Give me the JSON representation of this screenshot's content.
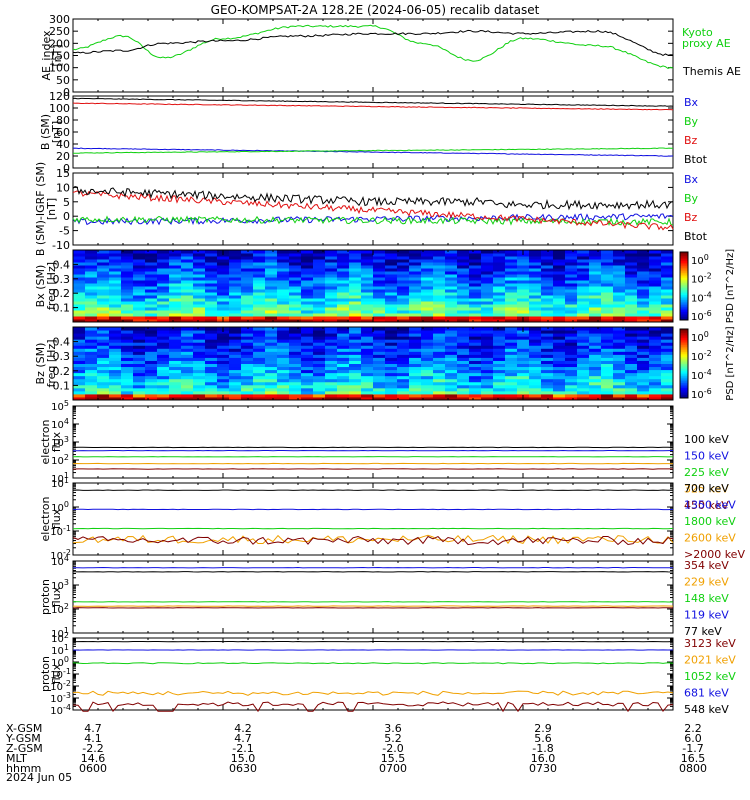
{
  "title": "GEO-KOMPSAT-2A 128.2E (2024-06-05) recalib dataset",
  "colors": {
    "black": "#000000",
    "blue": "#1010e0",
    "green": "#10d010",
    "red": "#e01010",
    "orange": "#f0a000",
    "darkred": "#800000"
  },
  "chart_data": [
    {
      "type": "line",
      "ylabel": "AE_index\n[nT]",
      "ylim": [
        0,
        300
      ],
      "yticks": [
        "0",
        "50",
        "100",
        "150",
        "200",
        "250",
        "300"
      ],
      "series": [
        {
          "name": "Kyoto\nproxy AE",
          "color": "#10d010",
          "x": [
            "0600",
            "0610",
            "0618",
            "0630",
            "0645",
            "0700",
            "0710",
            "0720",
            "0730",
            "0745",
            "0800"
          ],
          "values": [
            175,
            230,
            140,
            220,
            270,
            270,
            200,
            130,
            220,
            190,
            100
          ]
        },
        {
          "name": "Themis AE",
          "color": "#000000",
          "x": [
            "0600",
            "0610",
            "0618",
            "0630",
            "0645",
            "0700",
            "0710",
            "0720",
            "0730",
            "0745",
            "0800"
          ],
          "values": [
            160,
            170,
            200,
            210,
            230,
            240,
            240,
            250,
            240,
            250,
            150
          ]
        }
      ]
    },
    {
      "type": "line",
      "ylabel": "B (SM)\n[nT]",
      "ylim": [
        0,
        120
      ],
      "yticks": [
        "0",
        "20",
        "40",
        "60",
        "80",
        "100",
        "120"
      ],
      "series": [
        {
          "name": "Bx",
          "color": "#1010e0",
          "start": 33,
          "end": 20
        },
        {
          "name": "By",
          "color": "#10d010",
          "start": 25,
          "end": 33
        },
        {
          "name": "Bz",
          "color": "#e01010",
          "start": 108,
          "end": 97
        },
        {
          "name": "Btot",
          "color": "#000000",
          "start": 116,
          "end": 103
        }
      ]
    },
    {
      "type": "line",
      "ylabel": "B (SM)-IGRF (SM)\n[nT]",
      "ylim": [
        -10,
        15
      ],
      "yticks": [
        "-10",
        "-5",
        "0",
        "5",
        "10",
        "15"
      ],
      "series": [
        {
          "name": "Bx",
          "color": "#1010e0",
          "start": -2,
          "end": 0
        },
        {
          "name": "By",
          "color": "#10d010",
          "start": -1,
          "end": -2
        },
        {
          "name": "Bz",
          "color": "#e01010",
          "start": 8,
          "end": -4
        },
        {
          "name": "Btot",
          "color": "#000000",
          "start": 9,
          "end": 4
        }
      ]
    },
    {
      "type": "heatmap",
      "ylabel": "Bx (SM)\nfreq [Hz]",
      "yticks": [
        "0.1",
        "0.2",
        "0.3",
        "0.4"
      ],
      "colorbar_label": "PSD [nT^2/Hz]",
      "colorbar_ticks": [
        "10^0",
        "10^-2",
        "10^-4",
        "10^-6"
      ]
    },
    {
      "type": "heatmap",
      "ylabel": "Bz (SM)\nfreq [Hz]",
      "yticks": [
        "0.1",
        "0.2",
        "0.3",
        "0.4"
      ],
      "colorbar_label": "PSD [nT^2/Hz]",
      "colorbar_ticks": [
        "10^0",
        "10^-2",
        "10^-4",
        "10^-6"
      ]
    },
    {
      "type": "line",
      "log": true,
      "ylabel": "electron\nflux",
      "ylim_exp": [
        1,
        5
      ],
      "series": [
        {
          "name": "100 keV",
          "color": "#000000",
          "logv": 2.7
        },
        {
          "name": "150 keV",
          "color": "#1010e0",
          "logv": 2.52
        },
        {
          "name": "225 keV",
          "color": "#10d010",
          "logv": 2.18
        },
        {
          "name": "325 keV",
          "color": "#f0a000",
          "logv": 1.8
        },
        {
          "name": "450 keV",
          "color": "#800000",
          "logv": 1.5
        }
      ]
    },
    {
      "type": "line",
      "log": true,
      "ylabel": "electron\nflux",
      "ylim_exp": [
        -2,
        1
      ],
      "series": [
        {
          "name": "700 keV",
          "color": "#000000",
          "logv": 0.7
        },
        {
          "name": "1350 keV",
          "color": "#1010e0",
          "logv": -0.1
        },
        {
          "name": "1800 keV",
          "color": "#10d010",
          "logv": -0.9
        },
        {
          "name": "2600 keV",
          "color": "#f0a000",
          "logv": -1.35
        },
        {
          "name": ">2000 keV",
          "color": "#800000",
          "logv": -1.4
        }
      ]
    },
    {
      "type": "line",
      "log": true,
      "ylabel": "proton\nflux",
      "ylim_exp": [
        1,
        4
      ],
      "series": [
        {
          "name": "354 keV",
          "color": "#800000",
          "logv": 2.05
        },
        {
          "name": "229 keV",
          "color": "#f0a000",
          "logv": 2.12
        },
        {
          "name": "148 keV",
          "color": "#10d010",
          "logv": 2.3
        },
        {
          "name": "119 keV",
          "color": "#1010e0",
          "logv": 3.72
        },
        {
          "name": "77 keV",
          "color": "#000000",
          "logv": 3.55
        }
      ]
    },
    {
      "type": "line",
      "log": true,
      "ylabel": "proton\nflux",
      "ylim_exp": [
        -4,
        2
      ],
      "series": [
        {
          "name": "3123 keV",
          "color": "#800000",
          "logv": -3.5
        },
        {
          "name": "2021 keV",
          "color": "#f0a000",
          "logv": -2.6
        },
        {
          "name": "1052 keV",
          "color": "#10d010",
          "logv": -0.1
        },
        {
          "name": "681 keV",
          "color": "#1010e0",
          "logv": 1.0
        },
        {
          "name": "548 keV",
          "color": "#000000",
          "logv": 1.7
        }
      ]
    }
  ],
  "ephemeris": {
    "labels": [
      "X-GSM",
      "Y-GSM",
      "Z-GSM",
      "MLT",
      "hhmm",
      "2024 Jun 05"
    ],
    "columns": [
      {
        "values": [
          "4.7",
          "4.1",
          "-2.2",
          "14.6",
          "0600"
        ]
      },
      {
        "values": [
          "4.2",
          "4.7",
          "-2.1",
          "15.0",
          "0630"
        ]
      },
      {
        "values": [
          "3.6",
          "5.2",
          "-2.0",
          "15.5",
          "0700"
        ]
      },
      {
        "values": [
          "2.9",
          "5.6",
          "-1.8",
          "16.0",
          "0730"
        ]
      },
      {
        "values": [
          "2.2",
          "6.0",
          "-1.7",
          "16.5",
          "0800"
        ]
      }
    ]
  }
}
